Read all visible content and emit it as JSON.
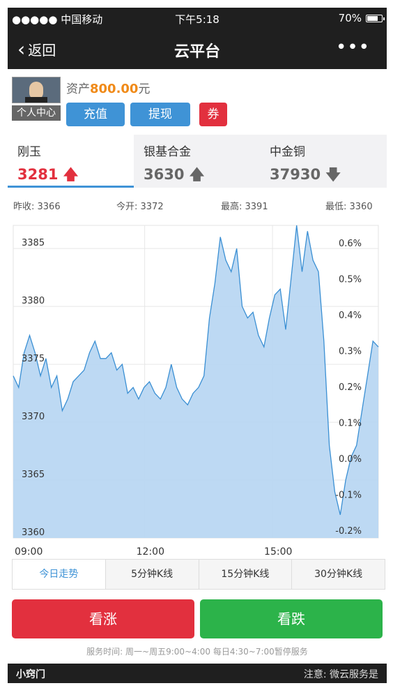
{
  "status": {
    "carrier": "●●●●● 中国移动",
    "time": "下午5:18",
    "battery": "70%"
  },
  "nav": {
    "back": "返回",
    "title": "云平台",
    "more": "•••"
  },
  "profile": {
    "user_center": "个人中心",
    "asset_label": "资产",
    "asset_value": "800.00",
    "asset_unit": "元",
    "buttons": {
      "recharge": "充值",
      "withdraw": "提现",
      "coupon": "券"
    }
  },
  "products": [
    {
      "name": "刚玉",
      "price": "3281",
      "trend": "up",
      "selected": true
    },
    {
      "name": "银基合金",
      "price": "3630",
      "trend": "up",
      "selected": false
    },
    {
      "name": "中金铜",
      "price": "37930",
      "trend": "down",
      "selected": false
    }
  ],
  "summary": {
    "prev_close": "昨收: 3366",
    "open": "今开: 3372",
    "high": "最高: 3391",
    "low": "最低: 3360"
  },
  "chart_data": {
    "type": "area",
    "y_ticks": [
      "3360",
      "3365",
      "3370",
      "3375",
      "3380",
      "3385"
    ],
    "y_min": 3360,
    "y_max": 3387,
    "pct_ticks": [
      "-0.2%",
      "-0.1%",
      "0.0%",
      "0.1%",
      "0.2%",
      "0.3%",
      "0.4%",
      "0.5%",
      "0.6%"
    ],
    "x_ticks": [
      "09:00",
      "12:00",
      "15:00"
    ],
    "grid": true,
    "series": [
      {
        "values": [
          3374,
          3373,
          3376,
          3377.5,
          3376,
          3374,
          3375.5,
          3373,
          3374,
          3371,
          3372,
          3373.5,
          3374,
          3374.5,
          3376,
          3377,
          3375.5,
          3375.5,
          3376,
          3374.5,
          3375,
          3372.5,
          3373,
          3372,
          3373,
          3373.5,
          3372.5,
          3372,
          3373,
          3375,
          3373,
          3372,
          3371.5,
          3372.5,
          3373,
          3374,
          3379,
          3382,
          3386,
          3384,
          3383,
          3385,
          3380,
          3379,
          3379.5,
          3377.5,
          3376.5,
          3379,
          3381,
          3381.5,
          3378,
          3382.5,
          3387,
          3383,
          3386.5,
          3384,
          3383,
          3377,
          3368,
          3364,
          3362,
          3365,
          3367,
          3368,
          3371,
          3374,
          3377,
          3376.5
        ]
      }
    ]
  },
  "ktabs": [
    "今日走势",
    "5分钟K线",
    "15分钟K线",
    "30分钟K线"
  ],
  "trade": {
    "up": "看涨",
    "down": "看跌"
  },
  "service_time": "服务时间: 周一~周五9:00~4:00 每日4:30~7:00暂停服务",
  "footer": {
    "left": "小窍门",
    "right": "注意: 微云服务是"
  },
  "colors": {
    "accent": "#3f93d6",
    "up": "#e2303e",
    "down": "#2cb34a",
    "area": "#b9d7f2",
    "line": "#3a8fd3"
  }
}
